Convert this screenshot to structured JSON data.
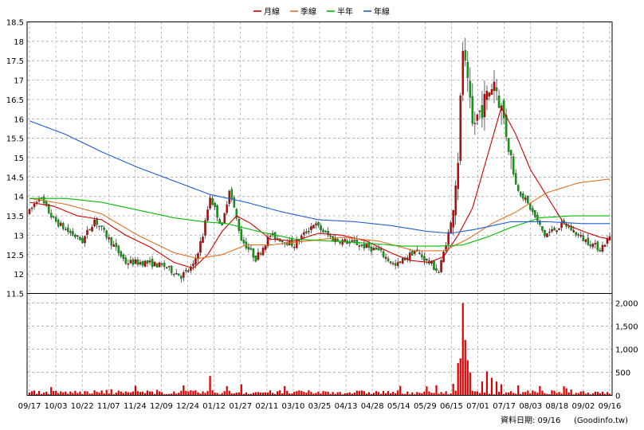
{
  "chart_data": {
    "type": "candlestick",
    "legend": [
      {
        "name": "月線",
        "color": "#cc0000"
      },
      {
        "name": "季線",
        "color": "#e07020"
      },
      {
        "name": "半年",
        "color": "#00bb00"
      },
      {
        "name": "年線",
        "color": "#1f5fd0"
      }
    ],
    "x_ticks": [
      "09/17",
      "10/03",
      "10/22",
      "11/07",
      "11/24",
      "12/09",
      "12/24",
      "01/12",
      "01/27",
      "02/11",
      "03/10",
      "03/25",
      "04/13",
      "04/28",
      "05/14",
      "05/29",
      "06/15",
      "07/01",
      "07/17",
      "08/03",
      "08/18",
      "09/02",
      "09/16"
    ],
    "price_axis": {
      "ylim": [
        11.5,
        18.5
      ],
      "ticks": [
        "11.5",
        "12",
        "12.5",
        "13",
        "13.5",
        "14",
        "14.5",
        "15",
        "15.5",
        "16",
        "16.5",
        "17",
        "17.5",
        "18",
        "18.5"
      ]
    },
    "volume_axis": {
      "ylim": [
        0,
        2000
      ],
      "ticks": [
        "0",
        "500",
        "1,000",
        "1,500",
        "2,000"
      ]
    },
    "candle_colors": {
      "up": "#cc0000",
      "down": "#00aa00"
    },
    "trend_points": [
      [
        0,
        13.6
      ],
      [
        4,
        14.0
      ],
      [
        10,
        13.4
      ],
      [
        16,
        13.1
      ],
      [
        22,
        12.85
      ],
      [
        27,
        13.4
      ],
      [
        33,
        12.9
      ],
      [
        40,
        12.3
      ],
      [
        48,
        12.3
      ],
      [
        56,
        12.2
      ],
      [
        63,
        11.95
      ],
      [
        68,
        12.2
      ],
      [
        72,
        13.0
      ],
      [
        75,
        14.0
      ],
      [
        80,
        13.2
      ],
      [
        83,
        14.2
      ],
      [
        88,
        12.9
      ],
      [
        94,
        12.4
      ],
      [
        100,
        13.0
      ],
      [
        110,
        12.75
      ],
      [
        118,
        13.3
      ],
      [
        126,
        12.9
      ],
      [
        135,
        12.8
      ],
      [
        145,
        12.6
      ],
      [
        152,
        12.2
      ],
      [
        160,
        12.6
      ],
      [
        166,
        12.3
      ],
      [
        170,
        12.05
      ],
      [
        175,
        13.3
      ],
      [
        178,
        15.0
      ],
      [
        180,
        17.8
      ],
      [
        184,
        15.8
      ],
      [
        188,
        16.3
      ],
      [
        193,
        17.0
      ],
      [
        197,
        16.0
      ],
      [
        202,
        14.3
      ],
      [
        208,
        13.7
      ],
      [
        214,
        13.0
      ],
      [
        222,
        13.3
      ],
      [
        230,
        12.9
      ],
      [
        237,
        12.65
      ],
      [
        241,
        12.95
      ]
    ],
    "ma_series": [
      {
        "name": "月線",
        "points": [
          [
            0,
            13.85
          ],
          [
            10,
            13.75
          ],
          [
            20,
            13.5
          ],
          [
            30,
            13.4
          ],
          [
            40,
            13.0
          ],
          [
            50,
            12.7
          ],
          [
            60,
            12.3
          ],
          [
            68,
            12.15
          ],
          [
            74,
            12.5
          ],
          [
            80,
            13.1
          ],
          [
            86,
            13.5
          ],
          [
            92,
            13.3
          ],
          [
            100,
            12.9
          ],
          [
            110,
            12.85
          ],
          [
            120,
            13.05
          ],
          [
            130,
            13.0
          ],
          [
            140,
            12.85
          ],
          [
            150,
            12.55
          ],
          [
            158,
            12.35
          ],
          [
            166,
            12.3
          ],
          [
            172,
            12.45
          ],
          [
            178,
            13.0
          ],
          [
            184,
            13.7
          ],
          [
            190,
            15.0
          ],
          [
            196,
            16.3
          ],
          [
            202,
            15.6
          ],
          [
            208,
            14.7
          ],
          [
            214,
            14.1
          ],
          [
            222,
            13.3
          ],
          [
            230,
            13.1
          ],
          [
            237,
            12.95
          ],
          [
            241,
            12.9
          ]
        ]
      },
      {
        "name": "季線",
        "points": [
          [
            0,
            13.95
          ],
          [
            15,
            13.8
          ],
          [
            30,
            13.55
          ],
          [
            45,
            13.0
          ],
          [
            60,
            12.55
          ],
          [
            70,
            12.4
          ],
          [
            80,
            12.5
          ],
          [
            90,
            12.75
          ],
          [
            100,
            12.75
          ],
          [
            115,
            12.85
          ],
          [
            130,
            12.95
          ],
          [
            145,
            12.85
          ],
          [
            160,
            12.6
          ],
          [
            172,
            12.6
          ],
          [
            182,
            12.9
          ],
          [
            192,
            13.3
          ],
          [
            202,
            13.6
          ],
          [
            215,
            14.1
          ],
          [
            228,
            14.35
          ],
          [
            241,
            14.45
          ]
        ]
      },
      {
        "name": "半年",
        "points": [
          [
            0,
            13.95
          ],
          [
            15,
            13.95
          ],
          [
            30,
            13.85
          ],
          [
            45,
            13.65
          ],
          [
            60,
            13.45
          ],
          [
            72,
            13.35
          ],
          [
            82,
            13.3
          ],
          [
            95,
            13.1
          ],
          [
            110,
            12.9
          ],
          [
            125,
            12.85
          ],
          [
            140,
            12.8
          ],
          [
            155,
            12.72
          ],
          [
            170,
            12.72
          ],
          [
            180,
            12.75
          ],
          [
            190,
            12.95
          ],
          [
            200,
            13.2
          ],
          [
            212,
            13.45
          ],
          [
            225,
            13.5
          ],
          [
            241,
            13.5
          ]
        ]
      },
      {
        "name": "年線",
        "points": [
          [
            0,
            15.95
          ],
          [
            15,
            15.6
          ],
          [
            30,
            15.15
          ],
          [
            45,
            14.75
          ],
          [
            60,
            14.4
          ],
          [
            75,
            14.05
          ],
          [
            90,
            13.85
          ],
          [
            105,
            13.6
          ],
          [
            120,
            13.4
          ],
          [
            135,
            13.35
          ],
          [
            150,
            13.25
          ],
          [
            165,
            13.1
          ],
          [
            175,
            13.05
          ],
          [
            185,
            13.15
          ],
          [
            200,
            13.35
          ],
          [
            215,
            13.35
          ],
          [
            230,
            13.3
          ],
          [
            241,
            13.3
          ]
        ]
      }
    ],
    "volume_spikes": [
      [
        75,
        420
      ],
      [
        82,
        200
      ],
      [
        88,
        240
      ],
      [
        176,
        250
      ],
      [
        178,
        700
      ],
      [
        179,
        800
      ],
      [
        180,
        2000
      ],
      [
        181,
        1200
      ],
      [
        182,
        760
      ],
      [
        183,
        500
      ],
      [
        188,
        300
      ],
      [
        190,
        520
      ],
      [
        192,
        380
      ],
      [
        194,
        300
      ],
      [
        196,
        240
      ]
    ],
    "footer_label": "資料日期: 09/16",
    "footer_source": "(Goodinfo.tw)"
  }
}
